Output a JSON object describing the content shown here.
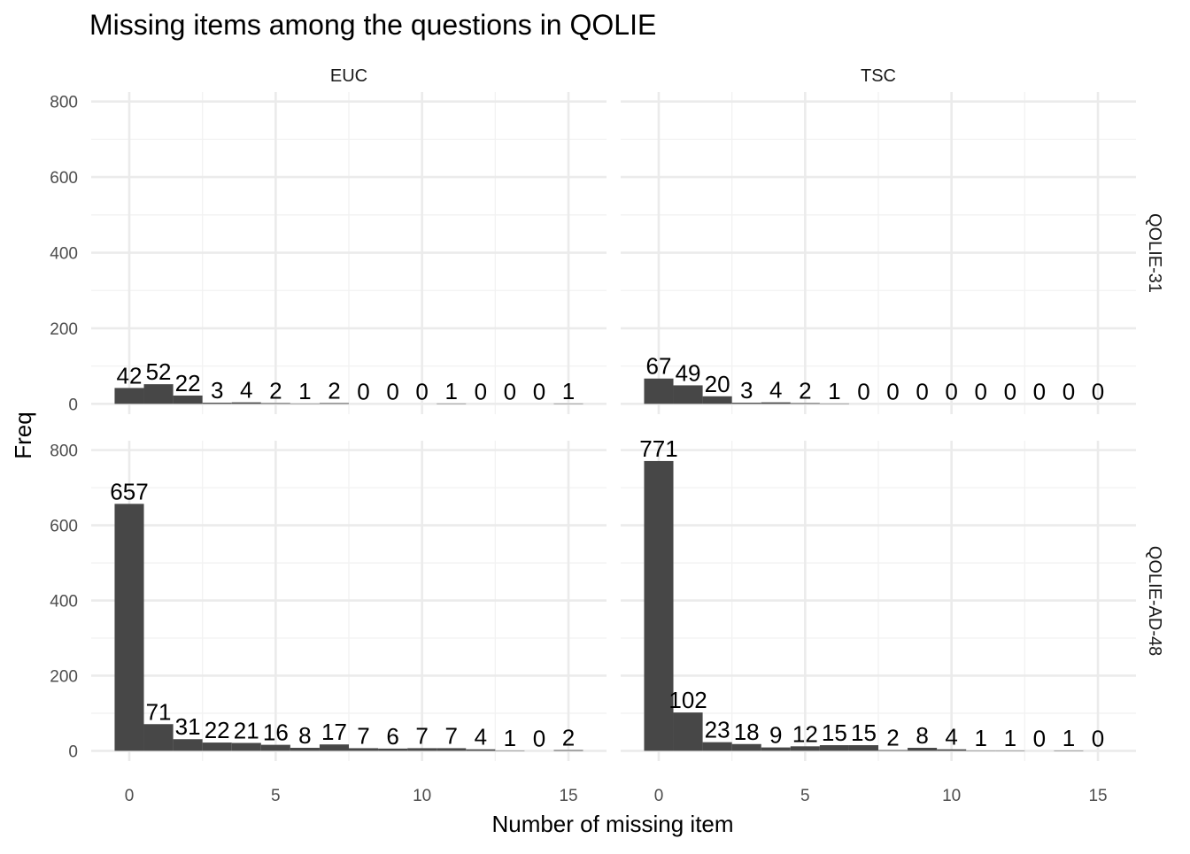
{
  "chart_data": {
    "type": "bar",
    "title": "Missing items among the questions in QOLIE",
    "xlabel": "Number of missing item",
    "ylabel": "Freq",
    "x_ticks": [
      0,
      5,
      10,
      15
    ],
    "y_ticks": [
      0,
      200,
      400,
      600,
      800
    ],
    "xlim": [
      -1.3,
      16.3
    ],
    "ylim": [
      0,
      825
    ],
    "grid": true,
    "bar_color": "#474747",
    "x": [
      0,
      1,
      2,
      3,
      4,
      5,
      6,
      7,
      8,
      9,
      10,
      11,
      12,
      13,
      14,
      15
    ],
    "facet_cols": [
      "EUC",
      "TSC"
    ],
    "facet_rows": [
      "QOLIE-31",
      "QOLIE-AD-48"
    ],
    "panels": [
      {
        "col": "EUC",
        "row": "QOLIE-31",
        "values": [
          42,
          52,
          22,
          3,
          4,
          2,
          1,
          2,
          0,
          0,
          0,
          1,
          0,
          0,
          0,
          1
        ]
      },
      {
        "col": "TSC",
        "row": "QOLIE-31",
        "values": [
          67,
          49,
          20,
          3,
          4,
          2,
          1,
          0,
          0,
          0,
          0,
          0,
          0,
          0,
          0,
          0
        ]
      },
      {
        "col": "EUC",
        "row": "QOLIE-AD-48",
        "values": [
          657,
          71,
          31,
          22,
          21,
          16,
          8,
          17,
          7,
          6,
          7,
          7,
          4,
          1,
          0,
          2
        ]
      },
      {
        "col": "TSC",
        "row": "QOLIE-AD-48",
        "values": [
          771,
          102,
          23,
          18,
          9,
          12,
          15,
          15,
          2,
          8,
          4,
          1,
          1,
          0,
          1,
          0
        ]
      }
    ]
  }
}
